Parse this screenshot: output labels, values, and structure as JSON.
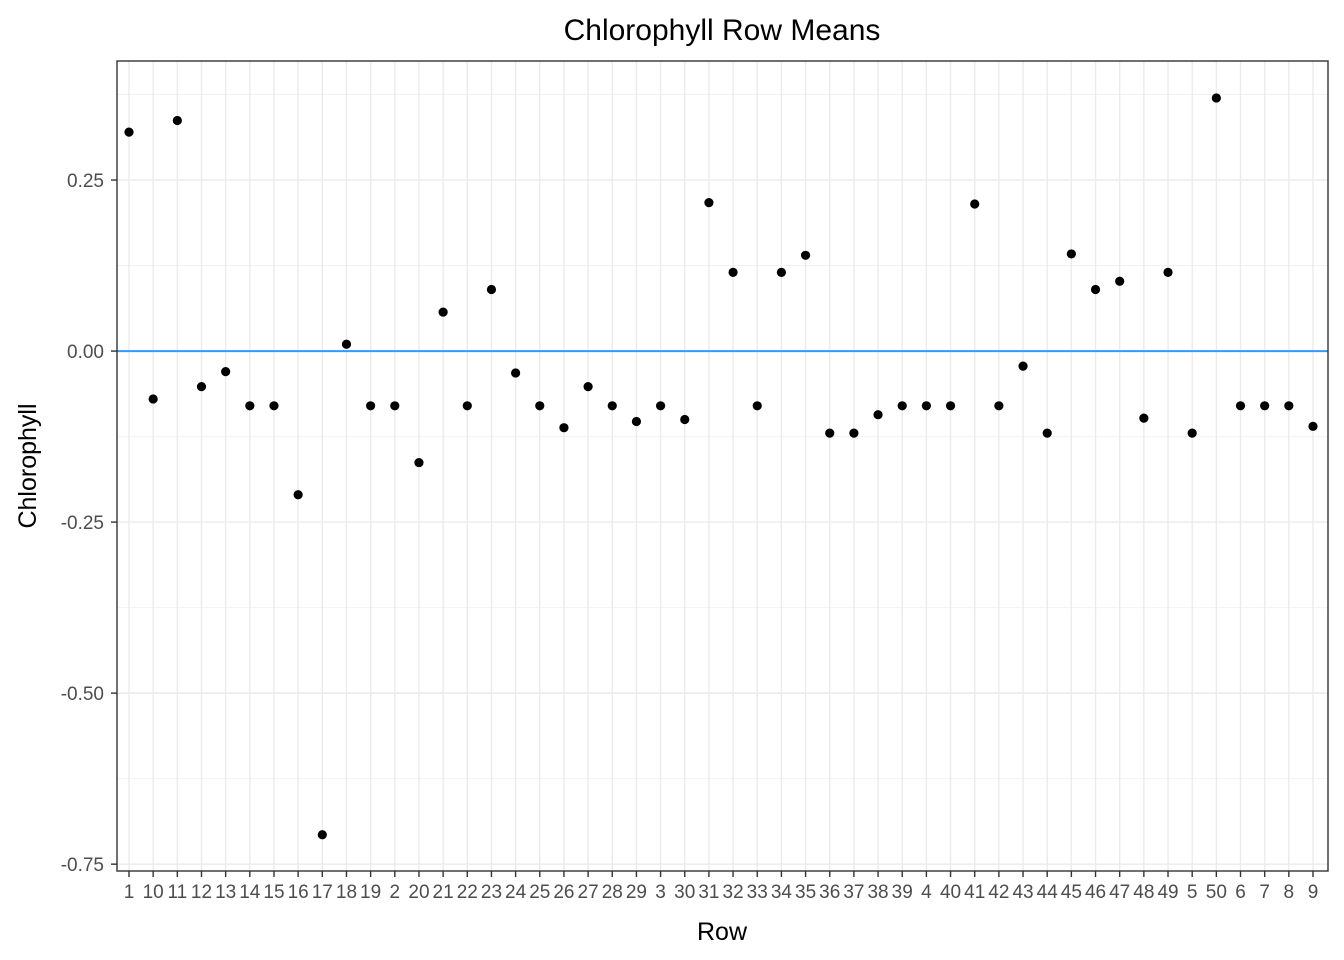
{
  "chart_data": {
    "type": "scatter",
    "title": "Chlorophyll Row Means",
    "xlabel": "Row",
    "ylabel": "Chlorophyll",
    "categories": [
      "1",
      "10",
      "11",
      "12",
      "13",
      "14",
      "15",
      "16",
      "17",
      "18",
      "19",
      "2",
      "20",
      "21",
      "22",
      "23",
      "24",
      "25",
      "26",
      "27",
      "28",
      "29",
      "3",
      "30",
      "31",
      "32",
      "33",
      "34",
      "35",
      "36",
      "37",
      "38",
      "39",
      "4",
      "40",
      "41",
      "42",
      "43",
      "44",
      "45",
      "46",
      "47",
      "48",
      "49",
      "5",
      "50",
      "6",
      "7",
      "8",
      "9"
    ],
    "values": [
      0.32,
      -0.07,
      0.337,
      -0.052,
      -0.03,
      -0.08,
      -0.08,
      -0.21,
      -0.707,
      0.01,
      -0.08,
      -0.08,
      -0.163,
      0.057,
      -0.08,
      0.09,
      -0.032,
      -0.08,
      -0.112,
      -0.052,
      -0.08,
      -0.103,
      -0.08,
      -0.1,
      0.217,
      0.115,
      -0.08,
      0.115,
      0.14,
      -0.12,
      -0.12,
      -0.093,
      -0.08,
      -0.08,
      -0.08,
      0.215,
      -0.08,
      -0.022,
      -0.12,
      0.142,
      0.09,
      0.102,
      -0.098,
      0.115,
      -0.12,
      0.37,
      -0.08,
      -0.08,
      -0.08,
      -0.11
    ],
    "ylim": [
      -0.76,
      0.424
    ],
    "yticks": [
      0.25,
      0.0,
      -0.25,
      -0.5,
      -0.75
    ],
    "ytick_labels": [
      "0.25",
      "0.00",
      "-0.25",
      "-0.50",
      "-0.75"
    ],
    "reference_line": {
      "y": 0.0,
      "color": "#3399FF"
    },
    "point_color": "#000000",
    "grid": true,
    "theme": "bw"
  }
}
